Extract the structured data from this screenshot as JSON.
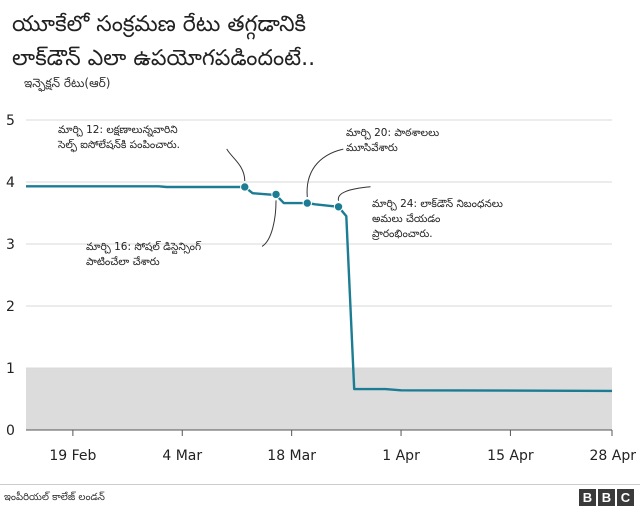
{
  "chart_data": {
    "type": "line",
    "title_lines": [
      "యూకేలో సంక్రమణ రేటు తగ్గడానికి",
      "లాక్‌డౌన్ ఎలా ఉపయోగపడిందంటే.."
    ],
    "ylabel": "ఇన్ఫెక్షన్ రేటు(ఆర్)",
    "xlabel": "",
    "x_ticks": [
      "19 Feb",
      "4 Mar",
      "18 Mar",
      "1 Apr",
      "15 Apr",
      "28 Apr"
    ],
    "y_ticks": [
      "0",
      "1",
      "2",
      "3",
      "4",
      "5"
    ],
    "ylim": [
      0,
      5
    ],
    "xlim": [
      "2020-02-13",
      "2020-04-28"
    ],
    "grid": true,
    "shaded_band": [
      0,
      1
    ],
    "colors": {
      "line": "#1b7c93",
      "band": "#dcdcdc",
      "grid": "#d9d9d9"
    },
    "series": [
      {
        "points": [
          [
            "2020-02-13",
            3.93
          ],
          [
            "2020-03-01",
            3.93
          ],
          [
            "2020-03-02",
            3.92
          ],
          [
            "2020-03-12",
            3.92
          ],
          [
            "2020-03-13",
            3.82
          ],
          [
            "2020-03-15",
            3.8
          ],
          [
            "2020-03-16",
            3.79
          ],
          [
            "2020-03-17",
            3.66
          ],
          [
            "2020-03-20",
            3.66
          ],
          [
            "2020-03-21",
            3.64
          ],
          [
            "2020-03-24",
            3.6
          ],
          [
            "2020-03-25",
            3.45
          ],
          [
            "2020-03-26",
            0.66
          ],
          [
            "2020-03-30",
            0.66
          ],
          [
            "2020-04-01",
            0.64
          ],
          [
            "2020-04-28",
            0.63
          ]
        ]
      }
    ],
    "annotations": [
      {
        "date": "2020-03-12",
        "value": 3.92,
        "lines": [
          "మార్చి 12: లక్షణాలున్నవారిని",
          "సెల్ఫ్ ఐసోలేషన్‌కి పంపించారు."
        ]
      },
      {
        "date": "2020-03-16",
        "value": 3.8,
        "lines": [
          "మార్చి 16: సోషల్ డిస్టెన్సింగ్",
          "పాటించేలా చేశారు"
        ]
      },
      {
        "date": "2020-03-20",
        "value": 3.66,
        "lines": [
          "మార్చి 20: పాఠశాలలు",
          "మూసివేశారు"
        ]
      },
      {
        "date": "2020-03-24",
        "value": 3.6,
        "lines": [
          "మార్చి 24: లాక్‌డౌన్ నిబంధనలు",
          "అమలు చేయడం",
          "ప్రారంభించారు."
        ]
      }
    ]
  },
  "footer": {
    "source": "ఇంపీరియల్ కాలేజ్ లండన్",
    "logo": [
      "B",
      "B",
      "C"
    ]
  }
}
